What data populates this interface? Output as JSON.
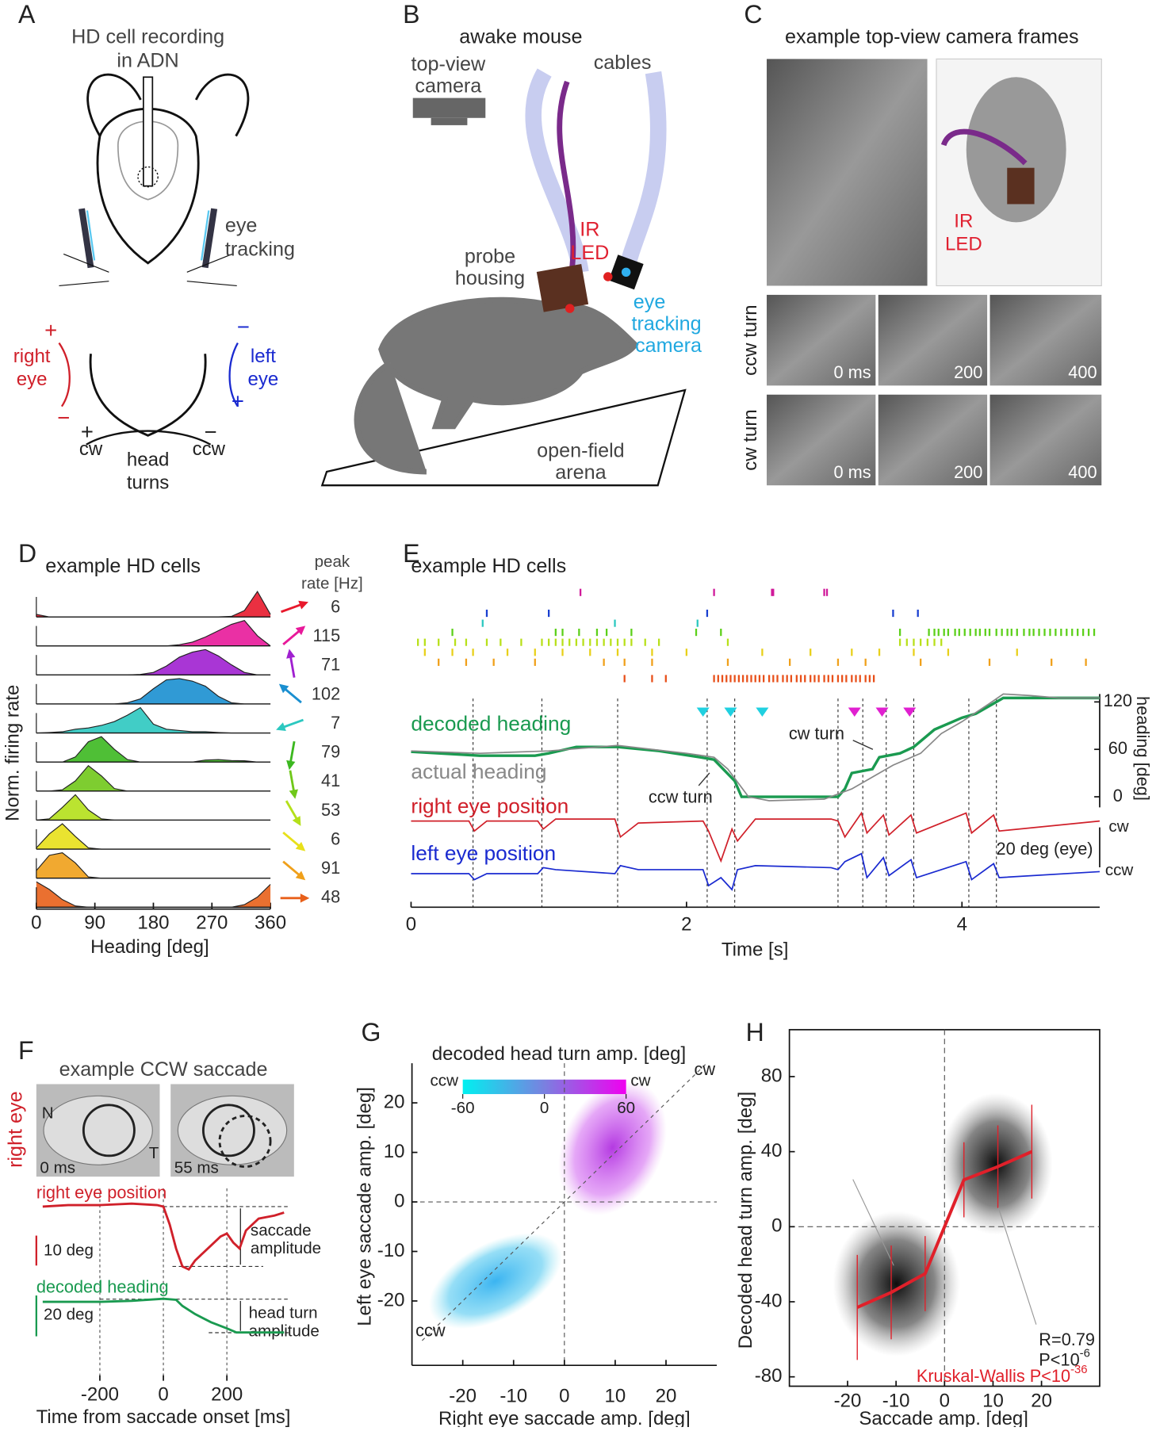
{
  "panels": {
    "A": {
      "label": "A",
      "title": [
        "HD cell recording",
        "in ADN"
      ],
      "eye_tracking": [
        "eye",
        "tracking"
      ],
      "right_eye": [
        "right",
        "eye"
      ],
      "left_eye": [
        "left",
        "eye"
      ],
      "plus": "+",
      "minus": "−",
      "cw": "cw",
      "ccw": "ccw",
      "head_turns": [
        "head",
        "turns"
      ]
    },
    "B": {
      "label": "B",
      "title": "awake mouse",
      "camera": [
        "top-view",
        "camera"
      ],
      "cables": "cables",
      "probe": [
        "probe",
        "housing"
      ],
      "ir_led": [
        "IR",
        "LED"
      ],
      "eye_camera": [
        "eye",
        "tracking",
        "camera"
      ],
      "arena": [
        "open-field",
        "arena"
      ]
    },
    "C": {
      "label": "C",
      "title": "example top-view camera frames",
      "ir_led": [
        "IR",
        "LED"
      ],
      "ccw_turn": "ccw turn",
      "cw_turn": "cw turn",
      "frame_labels": [
        "0 ms",
        "200",
        "400"
      ]
    },
    "D": {
      "label": "D"
    },
    "E": {
      "label": "E"
    },
    "F": {
      "label": "F"
    },
    "G": {
      "label": "G"
    },
    "H": {
      "label": "H"
    }
  },
  "chart_data": [
    {
      "type": "ridgeline",
      "title": "example HD cells",
      "peak_rate_label": [
        "peak",
        "rate [Hz]"
      ],
      "ylabel": "Norm. firing rate",
      "xlabel": "Heading [deg]",
      "x": [
        0,
        20,
        40,
        60,
        80,
        100,
        120,
        140,
        160,
        180,
        200,
        220,
        240,
        260,
        280,
        300,
        320,
        340,
        360
      ],
      "xlim": [
        0,
        360
      ],
      "xticks": [
        0,
        90,
        180,
        270,
        360
      ],
      "series": [
        {
          "color": "#e8192c",
          "peak_rate": 6,
          "values": [
            0.1,
            0,
            0,
            0,
            0,
            0,
            0,
            0,
            0,
            0,
            0,
            0,
            0,
            0,
            0,
            0.02,
            0.25,
            1,
            0.1
          ]
        },
        {
          "color": "#e8199a",
          "peak_rate": 115,
          "values": [
            0,
            0,
            0,
            0,
            0,
            0,
            0,
            0,
            0,
            0,
            0,
            0.05,
            0.15,
            0.35,
            0.6,
            0.85,
            1,
            0.4,
            0
          ]
        },
        {
          "color": "#a020d0",
          "peak_rate": 71,
          "values": [
            0,
            0,
            0,
            0,
            0,
            0,
            0,
            0,
            0.02,
            0.1,
            0.35,
            0.7,
            0.9,
            1,
            0.75,
            0.4,
            0.1,
            0,
            0
          ]
        },
        {
          "color": "#1a8fd0",
          "peak_rate": 102,
          "values": [
            0,
            0,
            0,
            0,
            0,
            0,
            0,
            0.05,
            0.2,
            0.6,
            0.95,
            1,
            0.9,
            0.7,
            0.3,
            0.05,
            0,
            0,
            0
          ]
        },
        {
          "color": "#2cc8c0",
          "peak_rate": 7,
          "values": [
            0,
            0.02,
            0.05,
            0.15,
            0.2,
            0.3,
            0.45,
            0.7,
            1,
            0.35,
            0.15,
            0.1,
            0.05,
            0.05,
            0.02,
            0,
            0,
            0,
            0
          ]
        },
        {
          "color": "#3cb820",
          "peak_rate": 79,
          "values": [
            0,
            0,
            0,
            0.2,
            0.8,
            1,
            0.5,
            0.1,
            0,
            0,
            0,
            0,
            0,
            0.08,
            0.1,
            0.06,
            0.05,
            0,
            0
          ]
        },
        {
          "color": "#70c81a",
          "peak_rate": 41,
          "values": [
            0,
            0,
            0.05,
            0.4,
            1,
            0.6,
            0.1,
            0,
            0,
            0,
            0,
            0,
            0,
            0,
            0,
            0,
            0,
            0,
            0
          ]
        },
        {
          "color": "#b4e01a",
          "peak_rate": 53,
          "values": [
            0,
            0.05,
            0.5,
            1,
            0.4,
            0.05,
            0,
            0,
            0,
            0,
            0,
            0,
            0,
            0,
            0,
            0,
            0,
            0,
            0
          ]
        },
        {
          "color": "#e8e01a",
          "peak_rate": 6,
          "values": [
            0.05,
            0.6,
            1,
            0.5,
            0.05,
            0,
            0,
            0,
            0,
            0,
            0,
            0,
            0,
            0,
            0,
            0,
            0,
            0,
            0
          ]
        },
        {
          "color": "#f0a01a",
          "peak_rate": 91,
          "values": [
            0.3,
            0.9,
            1,
            0.6,
            0.05,
            0,
            0,
            0,
            0,
            0,
            0,
            0,
            0,
            0,
            0,
            0,
            0,
            0,
            0
          ]
        },
        {
          "color": "#e8601a",
          "peak_rate": 48,
          "values": [
            1,
            0.7,
            0.3,
            0.05,
            0,
            0,
            0,
            0,
            0,
            0,
            0,
            0,
            0,
            0,
            0,
            0,
            0.1,
            0.4,
            0.9
          ]
        }
      ]
    },
    {
      "type": "line",
      "title": "example HD cells",
      "xlabel": "Time [s]",
      "xlim": [
        0,
        5
      ],
      "xticks": [
        0,
        2,
        4
      ],
      "y2lim": [
        -10,
        130
      ],
      "y2ticks": [
        0,
        60,
        120
      ],
      "y2label": "heading [deg]",
      "rasters": [
        {
          "color": "#d01a9a",
          "spikes": [
            1.23,
            2.2,
            2.62,
            2.63,
            3.0,
            3.02
          ]
        },
        {
          "color": "#1a40d0",
          "spikes": [
            0.55,
            1.0,
            2.15,
            3.5,
            3.68
          ]
        },
        {
          "color": "#2cc8c0",
          "spikes": [
            0.52,
            1.48,
            2.08
          ]
        },
        {
          "color": "#5cd01a",
          "spikes": [
            0.3,
            1.05,
            1.1,
            1.22,
            1.35,
            1.42,
            1.6,
            2.07,
            2.25,
            3.55,
            3.76,
            3.8,
            3.83,
            3.87,
            3.9,
            3.95,
            3.98,
            4.02,
            4.06,
            4.1,
            4.13,
            4.17,
            4.2,
            4.25,
            4.29,
            4.33,
            4.36,
            4.4,
            4.45,
            4.49,
            4.52,
            4.56,
            4.6,
            4.64,
            4.68,
            4.72,
            4.76,
            4.8,
            4.84,
            4.88,
            4.92,
            4.96
          ]
        },
        {
          "color": "#b8e01a",
          "spikes": [
            0.05,
            0.1,
            0.2,
            0.32,
            0.4,
            0.55,
            0.65,
            0.8,
            0.95,
            1.0,
            1.05,
            1.1,
            1.15,
            1.2,
            1.25,
            1.3,
            1.35,
            1.4,
            1.45,
            1.5,
            1.55,
            1.6,
            1.7,
            1.8,
            2.3,
            3.55,
            3.6,
            3.65,
            3.7,
            3.75,
            3.8,
            3.85
          ]
        },
        {
          "color": "#e8d01a",
          "spikes": [
            0.1,
            0.3,
            0.45,
            0.7,
            0.9,
            1.1,
            1.3,
            1.5,
            1.75,
            2.0,
            2.55,
            2.9,
            3.2,
            3.4,
            3.65,
            3.9,
            4.4
          ]
        },
        {
          "color": "#f0a01a",
          "spikes": [
            0.2,
            0.4,
            0.6,
            0.9,
            1.4,
            1.55,
            1.75,
            2.3,
            2.75,
            3.1,
            3.3,
            3.7,
            4.2,
            4.65,
            4.9
          ]
        },
        {
          "color": "#e8501a",
          "spikes": [
            1.55,
            1.75,
            1.85,
            2.2,
            2.23,
            2.26,
            2.29,
            2.32,
            2.35,
            2.38,
            2.41,
            2.44,
            2.47,
            2.5,
            2.53,
            2.56,
            2.6,
            2.63,
            2.66,
            2.7,
            2.73,
            2.76,
            2.8,
            2.83,
            2.86,
            2.9,
            2.93,
            2.96,
            3.0,
            3.03,
            3.06,
            3.1,
            3.13,
            3.16,
            3.2,
            3.23,
            3.26,
            3.3,
            3.33,
            3.36
          ]
        }
      ],
      "series": [
        {
          "name": "decoded heading",
          "color": "#1a9a50",
          "axis": "y2",
          "x": [
            0,
            0.5,
            0.9,
            1.0,
            1.2,
            1.5,
            1.8,
            2.1,
            2.2,
            2.35,
            2.4,
            3.1,
            3.15,
            3.2,
            3.35,
            3.4,
            3.55,
            3.65,
            3.8,
            4.0,
            4.1,
            4.3,
            5.0
          ],
          "values": [
            57,
            52,
            52,
            55,
            63,
            63,
            58,
            50,
            47,
            20,
            0,
            0,
            10,
            30,
            35,
            50,
            55,
            63,
            85,
            100,
            105,
            125,
            125
          ]
        },
        {
          "name": "actual heading",
          "color": "#888888",
          "axis": "y2",
          "x": [
            0,
            0.5,
            1.0,
            1.5,
            2.0,
            2.2,
            2.3,
            2.45,
            2.6,
            3.0,
            3.2,
            3.35,
            3.5,
            3.7,
            3.85,
            4.0,
            4.2,
            4.3,
            4.5,
            4.7,
            5.0
          ],
          "values": [
            58,
            55,
            58,
            65,
            55,
            50,
            35,
            0,
            -5,
            -3,
            10,
            25,
            40,
            55,
            80,
            95,
            118,
            130,
            128,
            125,
            125
          ]
        },
        {
          "name": "right eye position",
          "color": "#d0202a",
          "x": [
            0,
            0.42,
            0.46,
            0.55,
            0.92,
            0.96,
            1.05,
            1.48,
            1.52,
            1.65,
            2.12,
            2.16,
            2.25,
            2.33,
            2.37,
            2.5,
            3.05,
            3.1,
            3.15,
            3.27,
            3.31,
            3.43,
            3.47,
            3.63,
            3.67,
            4.03,
            4.07,
            4.23,
            4.27,
            5.0
          ],
          "values": [
            0,
            0,
            -5,
            0,
            0,
            -4,
            1,
            1,
            -8,
            -1,
            0,
            -5,
            -20,
            -4,
            -10,
            1,
            1,
            0,
            -8,
            4,
            -6,
            3,
            -7,
            3,
            -6,
            4,
            -6,
            3,
            -5,
            0
          ]
        },
        {
          "name": "left eye position",
          "color": "#1a2ad0",
          "x": [
            0,
            0.42,
            0.46,
            0.55,
            0.92,
            0.96,
            1.05,
            1.48,
            1.52,
            1.65,
            2.12,
            2.16,
            2.25,
            2.33,
            2.37,
            2.5,
            3.05,
            3.1,
            3.15,
            3.27,
            3.31,
            3.43,
            3.47,
            3.63,
            3.67,
            4.03,
            4.07,
            4.23,
            4.27,
            5.0
          ],
          "values": [
            0,
            0,
            -3,
            0,
            0,
            3,
            2,
            0,
            4,
            2,
            2,
            -6,
            -2,
            -8,
            2,
            4,
            3,
            2,
            6,
            10,
            -2,
            8,
            -1,
            7,
            -2,
            6,
            -3,
            5,
            -2,
            1
          ]
        }
      ],
      "saccades": [
        0.45,
        0.95,
        1.5,
        2.15,
        2.35,
        3.1,
        3.28,
        3.45,
        3.65,
        4.05,
        4.25
      ],
      "ccw_marks": [
        2.12,
        2.32,
        2.55
      ],
      "cw_marks": [
        3.22,
        3.42,
        3.62
      ],
      "annotations": {
        "ccw_turn": "ccw turn",
        "cw_turn": "cw turn"
      },
      "eye_scale": {
        "label": "20 deg (eye)",
        "value": 20,
        "cw": "cw",
        "ccw": "ccw"
      }
    },
    {
      "type": "line",
      "title": "example CCW saccade",
      "eye_label": "right eye",
      "nasal": "N",
      "temporal": "T",
      "frame_labels": [
        "0 ms",
        "55 ms"
      ],
      "xlabel": "Time from saccade onset [ms]",
      "xlim": [
        -380,
        380
      ],
      "xticks": [
        -200,
        0,
        200
      ],
      "series": [
        {
          "name": "right eye position",
          "color": "#d0202a",
          "x": [
            -380,
            -300,
            -200,
            -100,
            -20,
            0,
            20,
            40,
            60,
            80,
            100,
            140,
            180,
            200,
            220,
            240,
            260,
            300,
            350,
            380
          ],
          "values": [
            0,
            0.5,
            0.5,
            1,
            0.5,
            0,
            -6,
            -14,
            -20,
            -21,
            -18,
            -14,
            -10,
            -9,
            -12,
            -14,
            -8,
            -4,
            -3,
            -2
          ]
        },
        {
          "name": "decoded heading",
          "color": "#1a9a50",
          "x": [
            -380,
            -200,
            -100,
            0,
            40,
            60,
            100,
            150,
            200,
            230,
            260,
            380
          ],
          "values": [
            0,
            0,
            0.5,
            1.5,
            1,
            -2,
            -6,
            -10,
            -13,
            -15,
            -15,
            -15
          ]
        }
      ],
      "scale_bars": [
        {
          "label": "10 deg",
          "value": 10
        },
        {
          "label": "20 deg",
          "value": 20
        }
      ],
      "annotations": {
        "saccade_amplitude": [
          "saccade",
          "amplitude"
        ],
        "head_turn_amplitude": [
          "head turn",
          "amplitude"
        ]
      }
    },
    {
      "type": "scatter",
      "colorbar": {
        "title": "decoded head turn amp. [deg]",
        "lim": [
          -60,
          60
        ],
        "ticks": [
          -60,
          0,
          60
        ],
        "ends": [
          "ccw",
          "cw"
        ]
      },
      "xlabel": "Right eye saccade amp. [deg]",
      "ylabel": "Left eye saccade amp. [deg]",
      "xlim": [
        -30,
        30
      ],
      "ylim": [
        -33,
        28
      ],
      "xticks": [
        -20,
        -10,
        0,
        10,
        20
      ],
      "yticks": [
        -20,
        -10,
        0,
        10,
        20
      ],
      "annotations": {
        "cw": "cw",
        "ccw": "ccw"
      }
    },
    {
      "type": "scatter",
      "xlabel": "Saccade amp. [deg]",
      "ylabel": "Decoded head turn amp. [deg]",
      "xlim": [
        -32,
        32
      ],
      "ylim": [
        -85,
        105
      ],
      "xticks": [
        -20,
        -10,
        0,
        10,
        20
      ],
      "yticks": [
        -80,
        -40,
        0,
        40,
        80
      ],
      "series": [
        {
          "color": "#e0202a",
          "x": [
            -18,
            -11,
            -4,
            4,
            11,
            18
          ],
          "values": [
            -43,
            -35,
            -25,
            25,
            32,
            40
          ],
          "errors": [
            28,
            25,
            20,
            20,
            22,
            25
          ]
        }
      ],
      "stats": {
        "r": "R=0.79",
        "p": {
          "base": "P<10",
          "exp": "-6"
        },
        "kw": {
          "base": "Kruskal-Wallis P<10",
          "exp": "-36"
        }
      }
    }
  ]
}
